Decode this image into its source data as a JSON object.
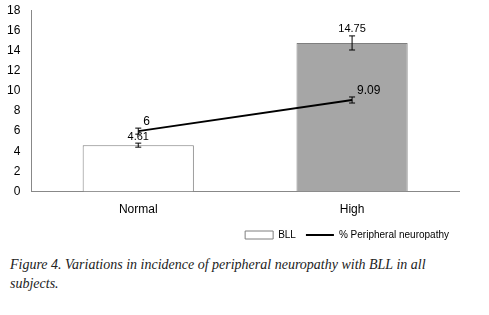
{
  "chart_data": {
    "type": "bar",
    "categories": [
      "Normal",
      "High"
    ],
    "series": [
      {
        "name": "BLL",
        "type": "bar",
        "colors": [
          "#ffffff",
          "#a6a6a6"
        ],
        "values": [
          4.61,
          14.75
        ],
        "error": [
          0.2,
          0.7
        ]
      },
      {
        "name": "% Peripheral neuropathy",
        "type": "line",
        "color": "#000000",
        "marker": "none",
        "values": [
          6,
          9.09
        ],
        "error": [
          0.3,
          0.3
        ]
      }
    ],
    "ylim": [
      0,
      18
    ],
    "yticks": [
      0,
      2,
      4,
      6,
      8,
      10,
      12,
      14,
      16,
      18
    ],
    "grid": false,
    "legend": "bottom",
    "data_labels": true,
    "caption": "Figure 4. Variations in incidence of peripheral neuropathy with BLL in all subjects."
  }
}
